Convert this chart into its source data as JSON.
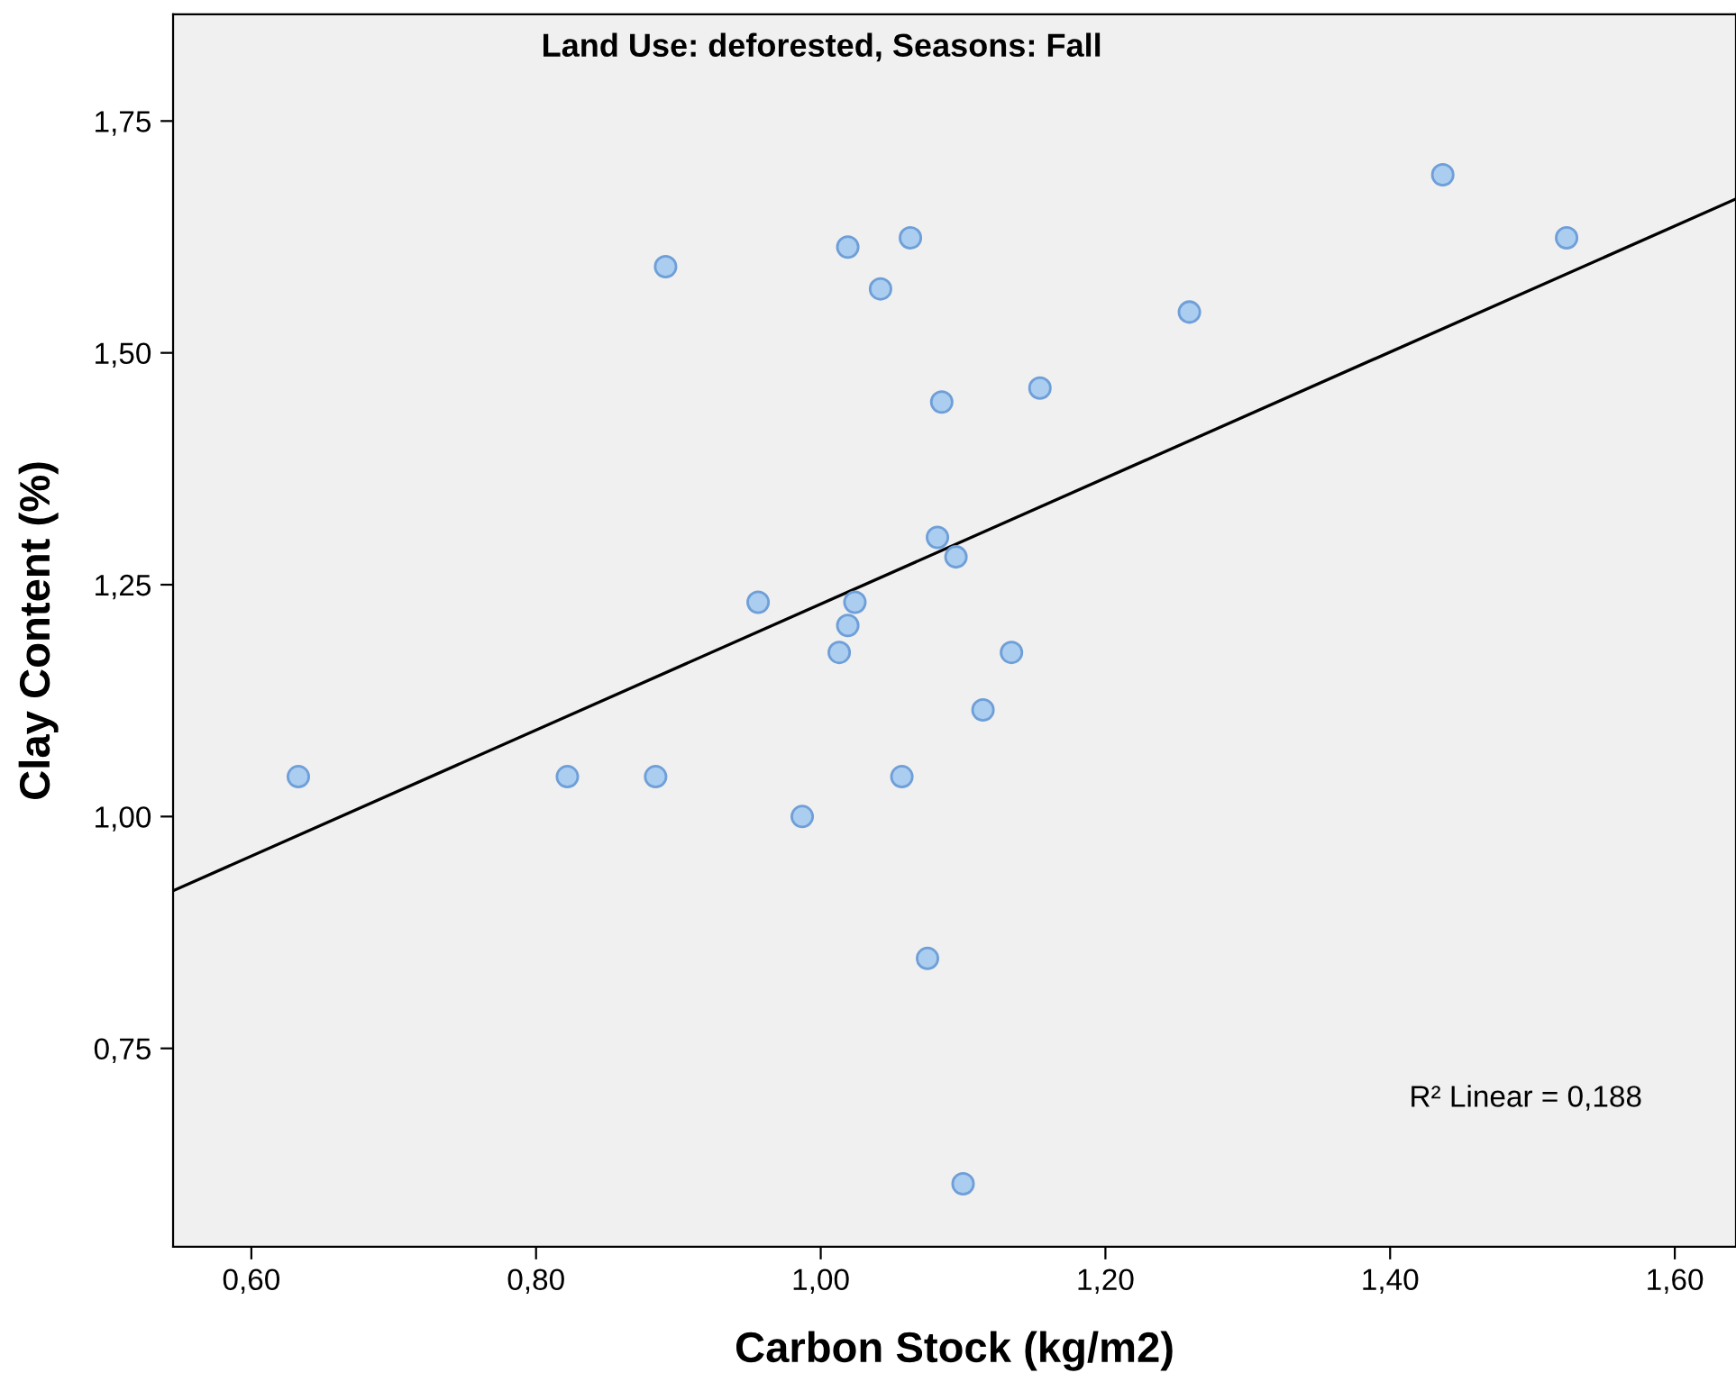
{
  "chart_data": {
    "type": "scatter",
    "title": "Land Use: deforested, Seasons: Fall",
    "xlabel": "Carbon Stock (kg/m2)",
    "ylabel": "Clay Content (%)",
    "annotations": [
      "R² Linear = 0,188"
    ],
    "series": [
      {
        "color": "#aacdf0",
        "marker": "circle",
        "x": [
          0.633,
          0.822,
          0.884,
          0.891,
          0.956,
          0.987,
          1.013,
          1.019,
          1.019,
          1.024,
          1.042,
          1.057,
          1.063,
          1.075,
          1.082,
          1.085,
          1.095,
          1.1,
          1.114,
          1.134,
          1.154,
          1.259,
          1.437,
          1.524
        ],
        "values": [
          1.043,
          1.043,
          1.043,
          1.593,
          1.231,
          1.0,
          1.177,
          1.614,
          1.206,
          1.231,
          1.569,
          1.043,
          1.624,
          0.847,
          1.301,
          1.447,
          1.28,
          0.604,
          1.115,
          1.177,
          1.462,
          1.544,
          1.692,
          1.624
        ]
      },
      {
        "type": "line",
        "color": "#000000",
        "x": [
          0.545,
          1.643
        ],
        "values": [
          0.92,
          1.666
        ]
      }
    ],
    "xlim": [
      0.545,
      1.643
    ],
    "ylim": [
      0.536,
      1.865
    ],
    "xticks": [
      {
        "value": 0.6,
        "label": "0,60"
      },
      {
        "value": 0.8,
        "label": "0,80"
      },
      {
        "value": 1.0,
        "label": "1,00"
      },
      {
        "value": 1.2,
        "label": "1,20"
      },
      {
        "value": 1.4,
        "label": "1,40"
      },
      {
        "value": 1.6,
        "label": "1,60"
      }
    ],
    "yticks": [
      {
        "value": 0.75,
        "label": "0,75"
      },
      {
        "value": 1.0,
        "label": "1,00"
      },
      {
        "value": 1.25,
        "label": "1,25"
      },
      {
        "value": 1.5,
        "label": "1,50"
      },
      {
        "value": 1.75,
        "label": "1,75"
      }
    ]
  }
}
